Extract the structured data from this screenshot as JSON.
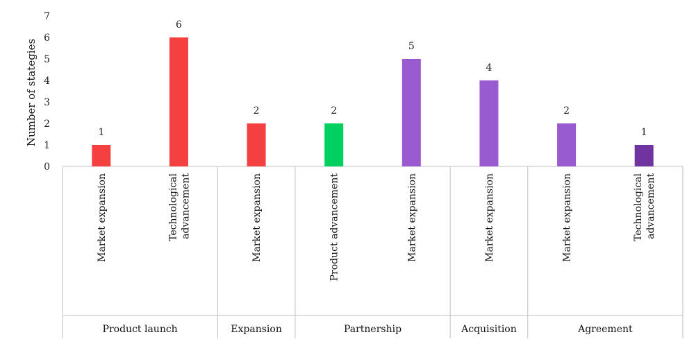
{
  "chart_data": {
    "type": "bar",
    "ylabel": "Number of stategies",
    "ylim": [
      0,
      7
    ],
    "yticks": [
      0,
      1,
      2,
      3,
      4,
      5,
      6,
      7
    ],
    "grid": false,
    "categories": [
      {
        "label": [
          "Market expansion"
        ],
        "group": "Product launch"
      },
      {
        "label": [
          "Technological",
          "advancement"
        ],
        "group": "Product launch"
      },
      {
        "label": [
          "Market expansion"
        ],
        "group": "Expansion"
      },
      {
        "label": [
          "Product advancement"
        ],
        "group": "Partnership"
      },
      {
        "label": [
          "Market expansion"
        ],
        "group": "Partnership"
      },
      {
        "label": [
          "Market expansion"
        ],
        "group": "Acquisition"
      },
      {
        "label": [
          "Market expansion"
        ],
        "group": "Agreement"
      },
      {
        "label": [
          "Technological",
          "advancement"
        ],
        "group": "Agreement"
      }
    ],
    "values": [
      1,
      6,
      2,
      2,
      5,
      4,
      2,
      1
    ],
    "bar_colors": [
      "#f44040",
      "#f44040",
      "#f44040",
      "#00d060",
      "#9a5bd1",
      "#9a5bd1",
      "#9a5bd1",
      "#7034a0"
    ],
    "groups": [
      "Product launch",
      "Expansion",
      "Partnership",
      "Acquisition",
      "Agreement"
    ]
  }
}
